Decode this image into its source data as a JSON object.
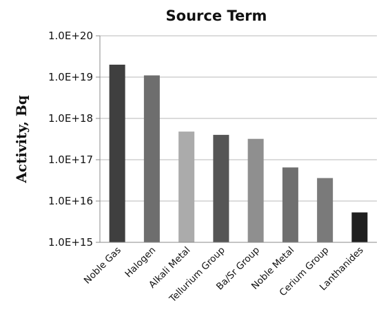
{
  "chart_data": {
    "type": "bar",
    "title": "Source Term",
    "xlabel": "",
    "ylabel": "Activity, Bq",
    "yscale": "log",
    "ylim": [
      1000000000000000.0,
      1e+20
    ],
    "yticks": [
      "1.0E+15",
      "1.0E+16",
      "1.0E+17",
      "1.0E+18",
      "1.0E+19",
      "1.0E+20"
    ],
    "grid": true,
    "categories": [
      "Noble Gas",
      "Halogen",
      "Alkali Metal",
      "Tellurium Group",
      "Ba/Sr Group",
      "Noble Metal",
      "Cerium Group",
      "Lanthanides"
    ],
    "values": [
      2e+19,
      1.1e+19,
      4.8e+17,
      4e+17,
      3.2e+17,
      6.5e+16,
      3.6e+16,
      5300000000000000.0
    ],
    "colors": [
      "#3f3f3f",
      "#6e6e6e",
      "#ababab",
      "#555555",
      "#8f8f8f",
      "#6f6f6f",
      "#7a7a7a",
      "#1f1f1f"
    ]
  }
}
